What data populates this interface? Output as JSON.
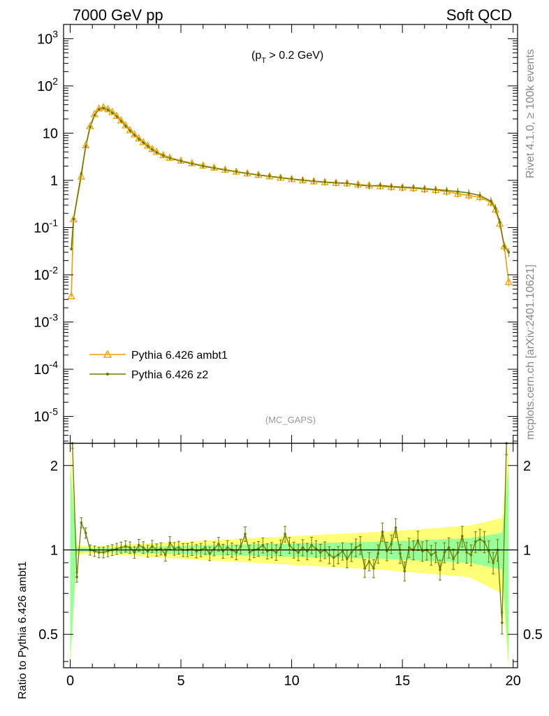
{
  "header": {
    "left_title": "7000 GeV pp",
    "right_title": "Soft QCD",
    "cut_label": "(p_T > 0.2 GeV)",
    "watermark": "(MC_GAPS)",
    "side_version": "Rivet 4.1.0, ≥ 100k events",
    "side_site": "mcplots.cern.ch [arXiv:2401.10621]"
  },
  "chart_data": [
    {
      "type": "line",
      "panel": "main",
      "yscale": "log",
      "xlim": [
        -0.3,
        20.2
      ],
      "ylim": [
        2.7e-06,
        2000
      ],
      "y_tick_labels": [
        "10^-5",
        "10^-4",
        "10^-3",
        "10^-2",
        "10^-1",
        "1",
        "10",
        "10^2",
        "10^3"
      ],
      "legend_position": "center-left",
      "series": [
        {
          "name": "Pythia 6.426 ambt1",
          "color": "#f0a000",
          "marker": "triangle",
          "points": [
            [
              0.05,
              0.0035
            ],
            [
              0.15,
              0.15
            ],
            [
              0.5,
              1.2
            ],
            [
              0.7,
              5.5
            ],
            [
              0.9,
              14
            ],
            [
              1.1,
              25
            ],
            [
              1.3,
              33
            ],
            [
              1.5,
              35
            ],
            [
              1.7,
              32
            ],
            [
              1.9,
              28
            ],
            [
              2.1,
              23
            ],
            [
              2.3,
              18.5
            ],
            [
              2.5,
              14.5
            ],
            [
              2.7,
              11.5
            ],
            [
              2.9,
              9.3
            ],
            [
              3.1,
              7.7
            ],
            [
              3.3,
              6.4
            ],
            [
              3.5,
              5.4
            ],
            [
              3.7,
              4.6
            ],
            [
              3.9,
              4.0
            ],
            [
              4.2,
              3.4
            ],
            [
              4.5,
              3.0
            ],
            [
              5.0,
              2.6
            ],
            [
              5.5,
              2.3
            ],
            [
              6.0,
              2.05
            ],
            [
              6.5,
              1.85
            ],
            [
              7.0,
              1.68
            ],
            [
              7.5,
              1.52
            ],
            [
              8.0,
              1.4
            ],
            [
              8.5,
              1.3
            ],
            [
              9.0,
              1.21
            ],
            [
              9.5,
              1.13
            ],
            [
              10.0,
              1.06
            ],
            [
              10.5,
              1.0
            ],
            [
              11.0,
              0.95
            ],
            [
              11.5,
              0.91
            ],
            [
              12.0,
              0.88
            ],
            [
              12.5,
              0.86
            ],
            [
              13.0,
              0.82
            ],
            [
              13.5,
              0.78
            ],
            [
              14.0,
              0.75
            ],
            [
              14.5,
              0.72
            ],
            [
              15.0,
              0.7
            ],
            [
              15.5,
              0.68
            ],
            [
              16.0,
              0.65
            ],
            [
              16.5,
              0.62
            ],
            [
              17.0,
              0.58
            ],
            [
              17.5,
              0.52
            ],
            [
              18.0,
              0.48
            ],
            [
              18.5,
              0.44
            ],
            [
              19.0,
              0.34
            ],
            [
              19.2,
              0.24
            ],
            [
              19.4,
              0.12
            ],
            [
              19.6,
              0.04
            ],
            [
              19.8,
              0.007
            ]
          ]
        },
        {
          "name": "Pythia 6.426 z2",
          "color": "#6b7a00",
          "marker": "dot",
          "points": [
            [
              0.05,
              0.035
            ],
            [
              0.15,
              0.15
            ],
            [
              0.5,
              1.4
            ],
            [
              0.7,
              5.2
            ],
            [
              0.9,
              13.5
            ],
            [
              1.1,
              24
            ],
            [
              1.3,
              32
            ],
            [
              1.5,
              34
            ],
            [
              1.7,
              31
            ],
            [
              1.9,
              27
            ],
            [
              2.1,
              22.5
            ],
            [
              2.3,
              18
            ],
            [
              2.5,
              14.2
            ],
            [
              2.7,
              11.3
            ],
            [
              2.9,
              9.1
            ],
            [
              3.1,
              7.5
            ],
            [
              3.3,
              6.3
            ],
            [
              3.5,
              5.3
            ],
            [
              3.7,
              4.5
            ],
            [
              3.9,
              3.9
            ],
            [
              4.2,
              3.35
            ],
            [
              4.5,
              2.95
            ],
            [
              5.0,
              2.55
            ],
            [
              5.5,
              2.25
            ],
            [
              6.0,
              2.0
            ],
            [
              6.5,
              1.82
            ],
            [
              7.0,
              1.66
            ],
            [
              7.5,
              1.52
            ],
            [
              8.0,
              1.4
            ],
            [
              8.5,
              1.3
            ],
            [
              9.0,
              1.22
            ],
            [
              9.5,
              1.14
            ],
            [
              10.0,
              1.07
            ],
            [
              10.5,
              1.01
            ],
            [
              11.0,
              0.96
            ],
            [
              11.5,
              0.92
            ],
            [
              12.0,
              0.89
            ],
            [
              12.5,
              0.87
            ],
            [
              13.0,
              0.8
            ],
            [
              13.5,
              0.76
            ],
            [
              14.0,
              0.78
            ],
            [
              14.5,
              0.74
            ],
            [
              15.0,
              0.72
            ],
            [
              15.5,
              0.7
            ],
            [
              16.0,
              0.67
            ],
            [
              16.5,
              0.64
            ],
            [
              17.0,
              0.61
            ],
            [
              17.5,
              0.58
            ],
            [
              18.0,
              0.54
            ],
            [
              18.5,
              0.48
            ],
            [
              19.0,
              0.36
            ],
            [
              19.2,
              0.26
            ],
            [
              19.4,
              0.13
            ],
            [
              19.6,
              0.04
            ],
            [
              19.8,
              0.03
            ]
          ]
        }
      ]
    },
    {
      "type": "line",
      "panel": "ratio",
      "ylabel": "Ratio to Pythia 6.426 ambt1",
      "xlim": [
        -0.3,
        20.2
      ],
      "ylim": [
        0.38,
        2.4
      ],
      "yscale": "log",
      "y_tick_labels": [
        "0.5",
        "1",
        "2"
      ],
      "x_tick_labels": [
        "0",
        "5",
        "10",
        "15",
        "20"
      ],
      "reference_line": 1.0,
      "bands": [
        {
          "name": "inner",
          "color": "#99ff99",
          "x": [
            0.0,
            0.3,
            1.0,
            3.0,
            6.0,
            10.0,
            14.0,
            18.0,
            19.5,
            19.8
          ],
          "lower": [
            0.4,
            0.98,
            0.985,
            0.975,
            0.96,
            0.945,
            0.93,
            0.9,
            0.85,
            0.4
          ],
          "upper": [
            2.0,
            1.02,
            1.015,
            1.025,
            1.04,
            1.055,
            1.07,
            1.1,
            1.15,
            2.0
          ]
        },
        {
          "name": "outer",
          "color": "#ffff77",
          "x": [
            0.0,
            0.3,
            1.0,
            3.0,
            6.0,
            10.0,
            14.0,
            18.0,
            19.5,
            19.8
          ],
          "lower": [
            0.35,
            0.96,
            0.97,
            0.95,
            0.92,
            0.885,
            0.85,
            0.8,
            0.7,
            0.35
          ],
          "upper": [
            2.4,
            1.04,
            1.03,
            1.05,
            1.08,
            1.12,
            1.16,
            1.22,
            1.3,
            2.4
          ]
        }
      ],
      "series": [
        {
          "name": "Pythia 6.426 z2 / ambt1",
          "color": "#6b7a00",
          "points": [
            [
              0.1,
              2.4
            ],
            [
              0.3,
              0.8
            ],
            [
              0.5,
              1.25
            ],
            [
              0.7,
              1.15
            ],
            [
              0.9,
              1.0
            ],
            [
              1.1,
              0.99
            ],
            [
              1.3,
              0.98
            ],
            [
              1.5,
              0.98
            ],
            [
              1.7,
              0.99
            ],
            [
              1.9,
              1.0
            ],
            [
              2.1,
              1.01
            ],
            [
              2.3,
              1.02
            ],
            [
              2.5,
              1.03
            ],
            [
              2.7,
              1.02
            ],
            [
              2.9,
              0.98
            ],
            [
              3.1,
              1.04
            ],
            [
              3.3,
              1.02
            ],
            [
              3.5,
              0.99
            ],
            [
              3.7,
              1.03
            ],
            [
              3.9,
              1.0
            ],
            [
              4.1,
              1.01
            ],
            [
              4.3,
              0.96
            ],
            [
              4.5,
              1.06
            ],
            [
              4.7,
              1.01
            ],
            [
              4.9,
              1.02
            ],
            [
              5.1,
              1.0
            ],
            [
              5.3,
              1.0
            ],
            [
              5.5,
              1.01
            ],
            [
              5.7,
              0.99
            ],
            [
              5.9,
              1.0
            ],
            [
              6.1,
              1.02
            ],
            [
              6.3,
              0.97
            ],
            [
              6.5,
              1.01
            ],
            [
              6.7,
              1.05
            ],
            [
              6.9,
              0.99
            ],
            [
              7.1,
              1.02
            ],
            [
              7.3,
              1.0
            ],
            [
              7.5,
              0.98
            ],
            [
              7.7,
              1.03
            ],
            [
              7.9,
              1.14
            ],
            [
              8.1,
              0.98
            ],
            [
              8.3,
              1.0
            ],
            [
              8.5,
              1.01
            ],
            [
              8.7,
              1.04
            ],
            [
              8.9,
              0.99
            ],
            [
              9.1,
              1.0
            ],
            [
              9.3,
              0.98
            ],
            [
              9.5,
              1.02
            ],
            [
              9.7,
              1.14
            ],
            [
              9.9,
              1.04
            ],
            [
              10.1,
              1.0
            ],
            [
              10.3,
              0.98
            ],
            [
              10.5,
              1.02
            ],
            [
              10.7,
              0.99
            ],
            [
              10.9,
              1.04
            ],
            [
              11.1,
              1.01
            ],
            [
              11.3,
              0.98
            ],
            [
              11.5,
              1.0
            ],
            [
              11.7,
              0.96
            ],
            [
              11.9,
              0.94
            ],
            [
              12.1,
              0.96
            ],
            [
              12.3,
              0.99
            ],
            [
              12.5,
              0.93
            ],
            [
              12.7,
              0.98
            ],
            [
              12.9,
              1.02
            ],
            [
              13.1,
              1.04
            ],
            [
              13.3,
              0.86
            ],
            [
              13.5,
              0.91
            ],
            [
              13.7,
              0.86
            ],
            [
              13.9,
              0.97
            ],
            [
              14.1,
              1.16
            ],
            [
              14.3,
              0.99
            ],
            [
              14.5,
              1.05
            ],
            [
              14.7,
              1.2
            ],
            [
              14.9,
              0.97
            ],
            [
              15.1,
              0.84
            ],
            [
              15.3,
              1.02
            ],
            [
              15.5,
              1.0
            ],
            [
              15.7,
              1.08
            ],
            [
              15.9,
              0.99
            ],
            [
              16.1,
              1.0
            ],
            [
              16.3,
              0.96
            ],
            [
              16.5,
              0.98
            ],
            [
              16.7,
              0.85
            ],
            [
              16.9,
              0.98
            ],
            [
              17.1,
              1.02
            ],
            [
              17.3,
              0.93
            ],
            [
              17.5,
              0.98
            ],
            [
              17.7,
              1.12
            ],
            [
              17.9,
              0.98
            ],
            [
              18.1,
              0.96
            ],
            [
              18.3,
              1.07
            ],
            [
              18.5,
              1.09
            ],
            [
              18.7,
              1.07
            ],
            [
              18.9,
              0.99
            ],
            [
              19.1,
              0.9
            ],
            [
              19.3,
              1.0
            ],
            [
              19.5,
              0.55
            ],
            [
              19.7,
              2.4
            ]
          ]
        }
      ]
    }
  ]
}
